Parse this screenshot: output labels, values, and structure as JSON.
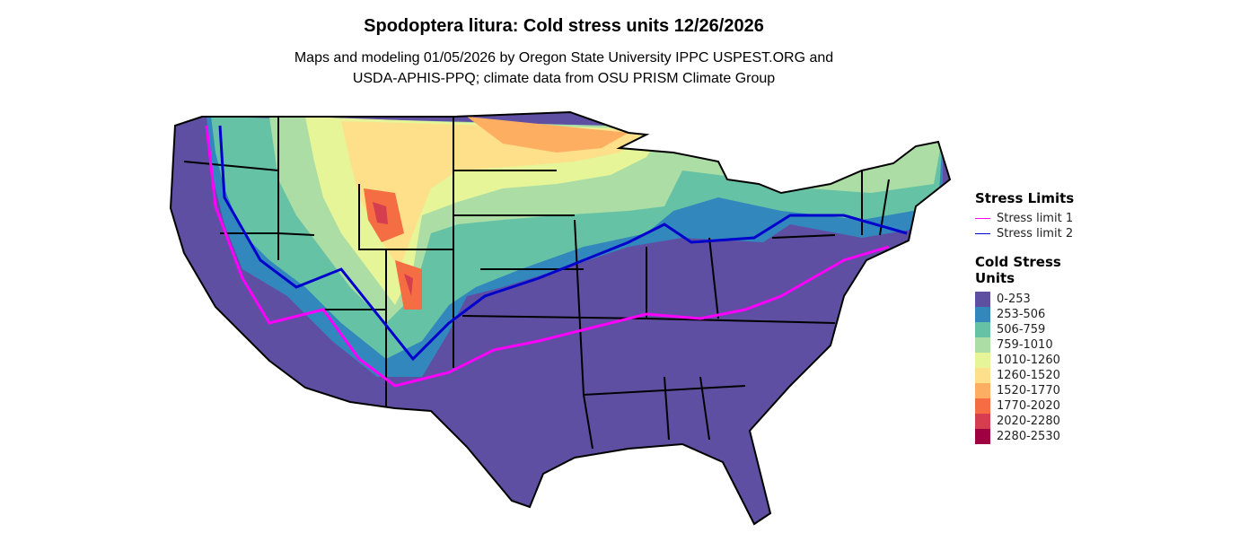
{
  "title": "Spodoptera litura: Cold stress units 12/26/2026",
  "subtitle_line1": "Maps and modeling 01/05/2026 by Oregon State University IPPC USPEST.ORG and",
  "subtitle_line2": "USDA-APHIS-PPQ; climate data from OSU PRISM Climate Group",
  "stress_legend": {
    "title": "Stress Limits",
    "items": [
      {
        "label": "Stress limit 1",
        "color": "#FF00FF"
      },
      {
        "label": "Stress limit 2",
        "color": "#0000CD"
      }
    ]
  },
  "csu_legend": {
    "title": "Cold Stress Units",
    "items": [
      {
        "label": "0-253",
        "color": "#5E4FA2"
      },
      {
        "label": "253-506",
        "color": "#3288BD"
      },
      {
        "label": "506-759",
        "color": "#66C2A5"
      },
      {
        "label": "759-1010",
        "color": "#ABDDA4"
      },
      {
        "label": "1010-1260",
        "color": "#E6F598"
      },
      {
        "label": "1260-1520",
        "color": "#FEE08B"
      },
      {
        "label": "1520-1770",
        "color": "#FDAE61"
      },
      {
        "label": "1770-2020",
        "color": "#F46D43"
      },
      {
        "label": "2020-2280",
        "color": "#D53E4F"
      },
      {
        "label": "2280-2530",
        "color": "#9E0142"
      }
    ]
  }
}
